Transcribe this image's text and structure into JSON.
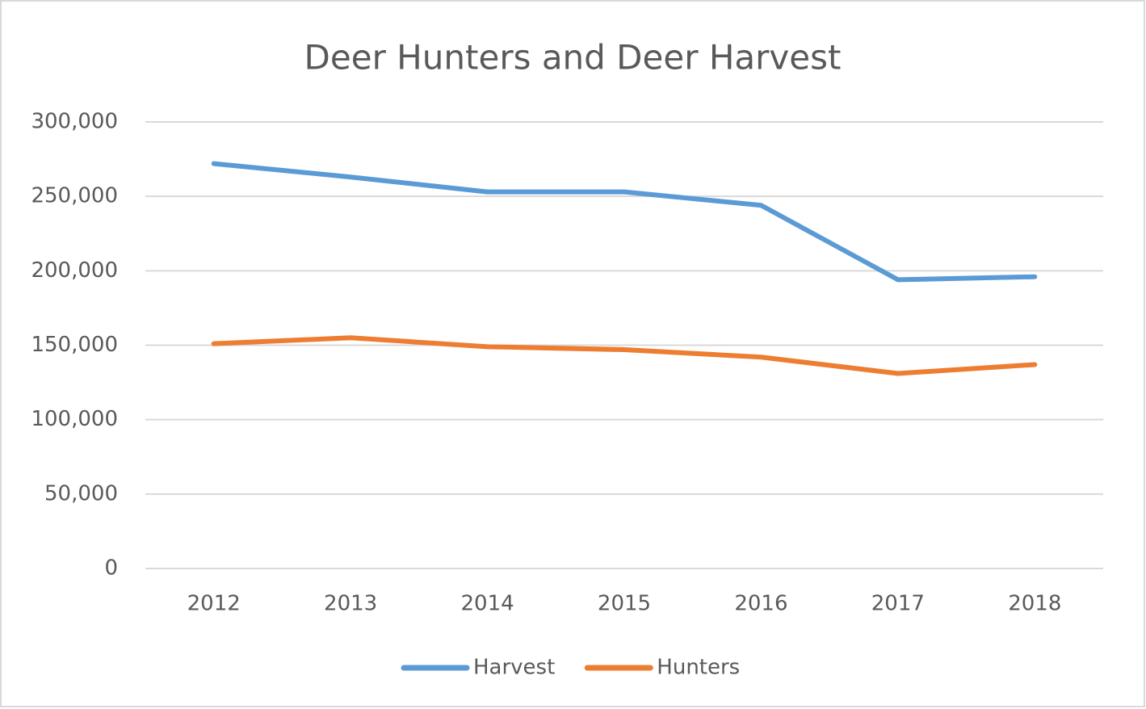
{
  "chart_data": {
    "type": "line",
    "title": "Deer Hunters and Deer Harvest",
    "categories": [
      "2012",
      "2013",
      "2014",
      "2015",
      "2016",
      "2017",
      "2018"
    ],
    "series": [
      {
        "name": "Harvest",
        "color": "#5b9bd5",
        "values": [
          272000,
          263000,
          253000,
          253000,
          244000,
          194000,
          196000
        ]
      },
      {
        "name": "Hunters",
        "color": "#ed7d31",
        "values": [
          151000,
          155000,
          149000,
          147000,
          142000,
          131000,
          137000
        ]
      }
    ],
    "ylim": [
      0,
      300000
    ],
    "yticks": [
      0,
      {
        "value": 50000,
        "label": "50,000"
      },
      {
        "value": 100000,
        "label": "100,000"
      },
      {
        "value": 150000,
        "label": "150,000"
      },
      {
        "value": 200000,
        "label": "200,000"
      },
      {
        "value": 250000,
        "label": "250,000"
      },
      {
        "value": 300000,
        "label": "300,000"
      }
    ],
    "grid": true,
    "legend": "bottom"
  }
}
